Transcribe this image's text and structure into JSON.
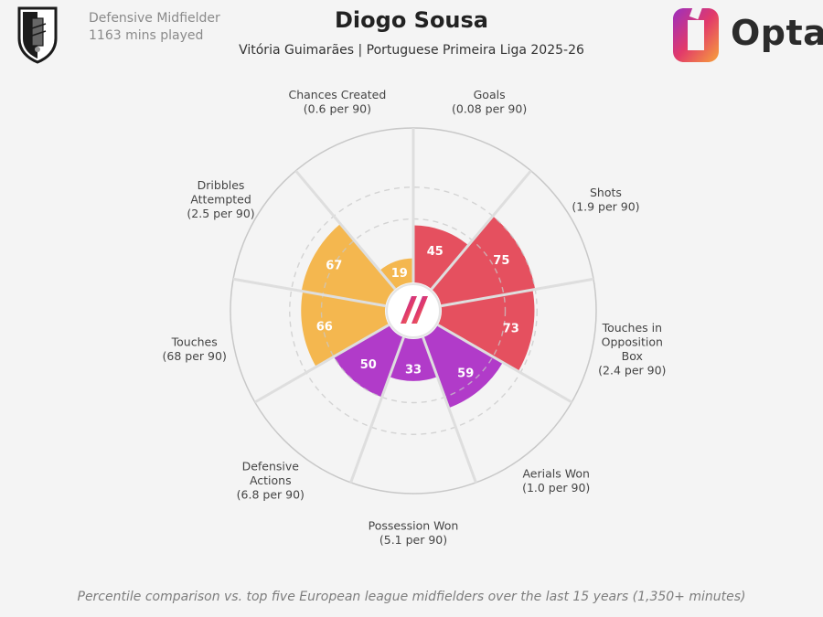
{
  "header": {
    "position": "Defensive Midfielder",
    "minutes": "1163 mins played",
    "player_name": "Diogo Sousa",
    "team_league": "Vitória Guimarães | Portuguese Primeira Liga 2025-26",
    "brand": "Opta"
  },
  "footnote": "Percentile comparison vs. top five European league midfielders over the last 15 years (1,350+ minutes)",
  "chart_data": {
    "type": "radar",
    "scale_max": 100,
    "categories": [
      {
        "label": "Goals",
        "sub": "(0.08 per 90)",
        "value": 45,
        "group": "attack"
      },
      {
        "label": "Shots",
        "sub": "(1.9 per 90)",
        "value": 75,
        "group": "attack"
      },
      {
        "label": "Touches in Opposition Box",
        "sub": "(2.4 per 90)",
        "value": 73,
        "group": "attack"
      },
      {
        "label": "Aerials Won",
        "sub": "(1.0 per 90)",
        "value": 59,
        "group": "defence"
      },
      {
        "label": "Possession Won",
        "sub": "(5.1 per 90)",
        "value": 33,
        "group": "defence"
      },
      {
        "label": "Defensive Actions",
        "sub": "(6.8 per 90)",
        "value": 50,
        "group": "defence"
      },
      {
        "label": "Touches",
        "sub": "(68 per 90)",
        "value": 66,
        "group": "possession"
      },
      {
        "label": "Dribbles Attempted",
        "sub": "(2.5 per 90)",
        "value": 67,
        "group": "possession"
      },
      {
        "label": "Chances Created",
        "sub": "(0.6 per 90)",
        "value": 19,
        "group": "possession"
      }
    ],
    "group_colors": {
      "attack": "#e5505f",
      "defence": "#b13bc9",
      "possession": "#f4b74f"
    }
  }
}
